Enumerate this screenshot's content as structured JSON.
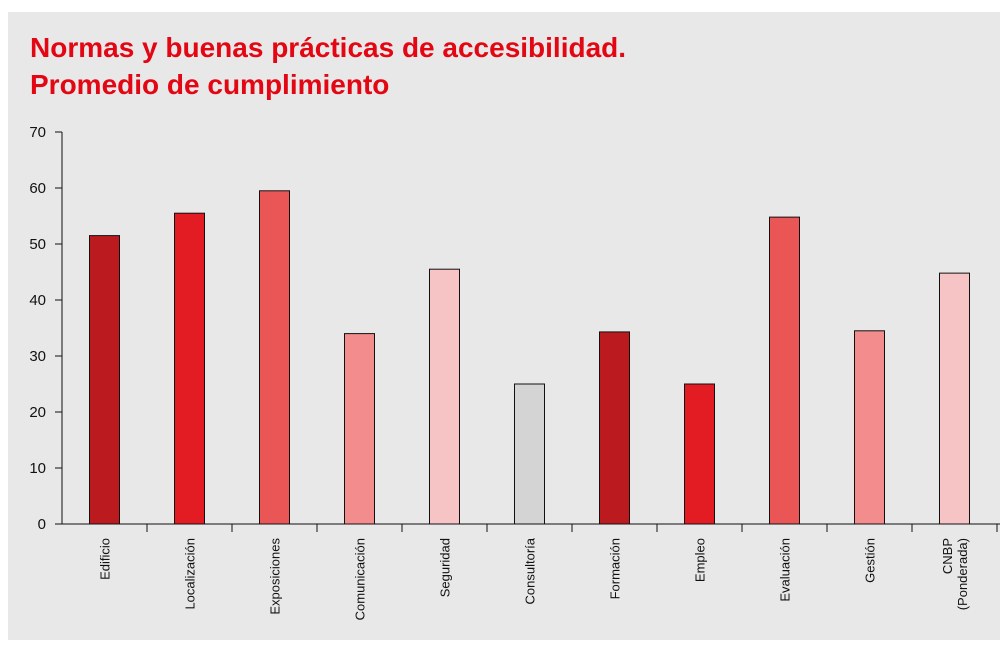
{
  "chart_data": {
    "type": "bar",
    "title": [
      "Normas y buenas prácticas de accesibilidad.",
      "Promedio de cumplimiento"
    ],
    "categories": [
      "Edificio",
      "Localización",
      "Exposiciones",
      "Comunicación",
      "Seguridad",
      "Consultoría",
      "Formación",
      "Empleo",
      "Evaluación",
      "Gestión",
      "CNBP\n(Ponderada)"
    ],
    "values": [
      51.5,
      55.5,
      59.5,
      34,
      45.5,
      25,
      34.3,
      25,
      54.8,
      34.5,
      44.8
    ],
    "colors": [
      "#bb1b1e",
      "#e31b23",
      "#ea5556",
      "#f28c8d",
      "#f7c4c6",
      "#d4d4d4",
      "#bb1b1e",
      "#e31b23",
      "#ea5556",
      "#f28c8d",
      "#f7c4c6"
    ],
    "ylim": [
      0,
      70
    ],
    "yticks": [
      0,
      10,
      20,
      30,
      40,
      50,
      60,
      70
    ],
    "grid": false
  }
}
